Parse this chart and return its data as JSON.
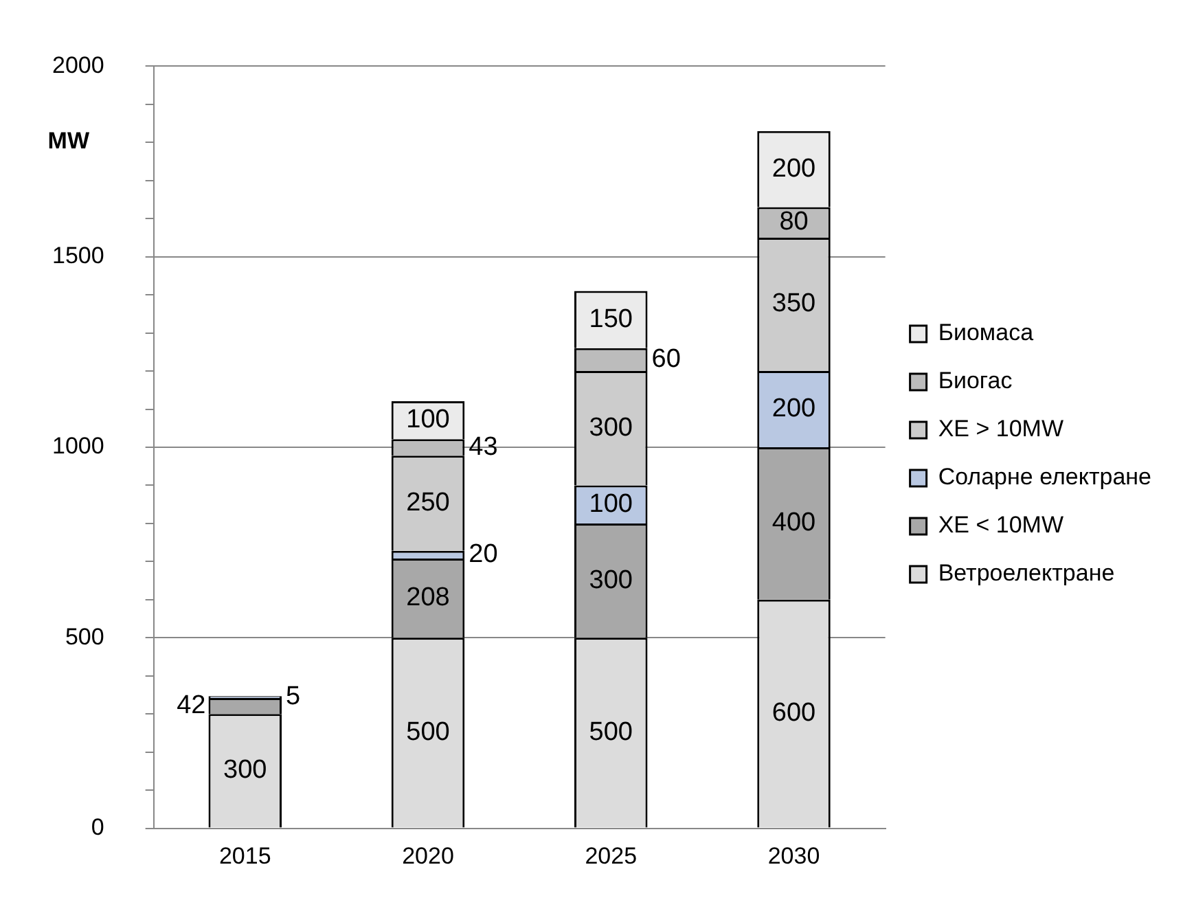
{
  "chart_data": {
    "type": "bar",
    "stacked": true,
    "ylabel": "MW",
    "categories": [
      "2015",
      "2020",
      "2025",
      "2030"
    ],
    "series": [
      {
        "name": "Ветроелектране",
        "color": "#dcdcdc",
        "values": [
          300,
          500,
          500,
          600
        ]
      },
      {
        "name": "ХЕ < 10MW",
        "color": "#a8a8a8",
        "values": [
          42,
          208,
          300,
          400
        ]
      },
      {
        "name": "Соларне електране",
        "color": "#b9c8e2",
        "values": [
          5,
          20,
          100,
          200
        ]
      },
      {
        "name": "ХЕ > 10MW",
        "color": "#cccccc",
        "values": [
          null,
          250,
          300,
          350
        ]
      },
      {
        "name": "Биогас",
        "color": "#bcbcbc",
        "values": [
          null,
          43,
          60,
          80
        ]
      },
      {
        "name": "Биомаса",
        "color": "#ebebeb",
        "values": [
          null,
          100,
          150,
          200
        ]
      }
    ],
    "ylim": [
      0,
      2000
    ],
    "yticks": [
      0,
      {
        "value": 100,
        "label": null
      },
      {
        "value": 200,
        "label": null
      },
      {
        "value": 300,
        "label": null
      },
      {
        "value": 400,
        "label": null
      },
      500,
      {
        "value": 600,
        "label": null
      },
      {
        "value": 700,
        "label": null
      },
      {
        "value": 800,
        "label": null
      },
      {
        "value": 900,
        "label": null
      },
      1000,
      {
        "value": 1100,
        "label": null
      },
      {
        "value": 1200,
        "label": null
      },
      {
        "value": 1300,
        "label": null
      },
      {
        "value": 1400,
        "label": null
      },
      1500,
      {
        "value": 1600,
        "label": null
      },
      {
        "value": 1700,
        "label": null
      },
      {
        "value": 1800,
        "label": null
      },
      {
        "value": 1900,
        "label": null
      },
      2000
    ],
    "grid": "y",
    "legend": "right",
    "data_labels": true
  }
}
